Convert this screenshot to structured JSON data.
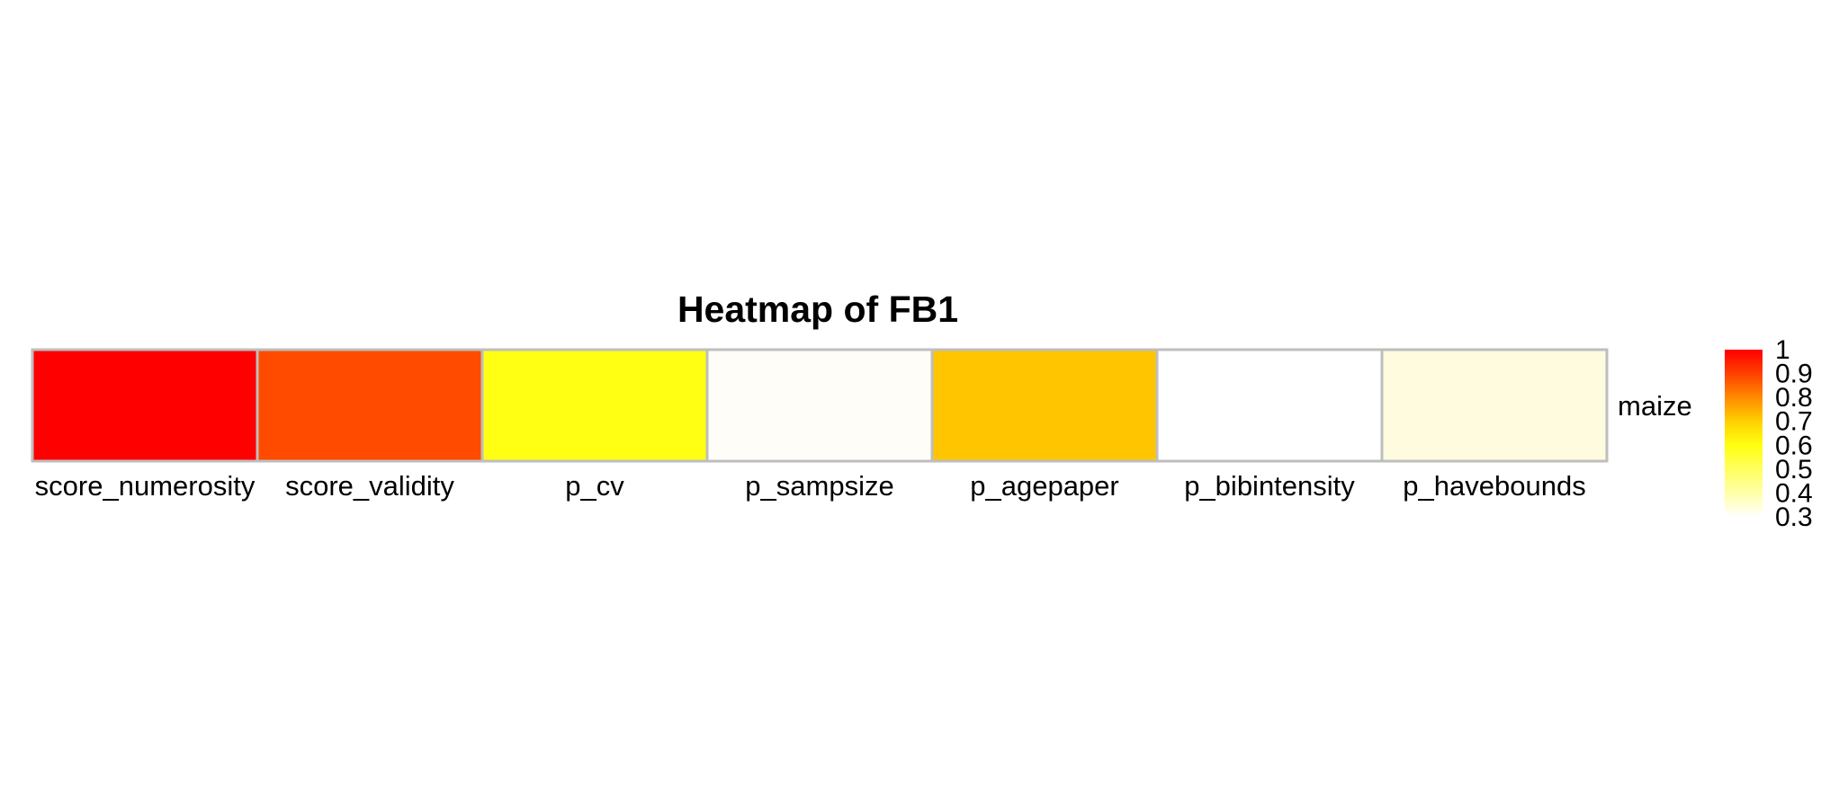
{
  "chart_data": {
    "type": "heatmap",
    "title": "Heatmap  of  FB1",
    "rows": [
      "maize"
    ],
    "columns": [
      "score_numerosity",
      "score_validity",
      "p_cv",
      "p_sampsize",
      "p_agepaper",
      "p_bibintensity",
      "p_havebounds"
    ],
    "values": [
      [
        1.0,
        0.9,
        0.6,
        0.3,
        0.75,
        0.28,
        0.35
      ]
    ],
    "cell_colors": [
      [
        "#ff0000",
        "#ff4b00",
        "#ffff14",
        "#fffdf8",
        "#ffc600",
        "#ffffff",
        "#fffbde"
      ]
    ],
    "cell_border_color": "#bebebe",
    "legend": {
      "position": "right",
      "ticks": [
        "1",
        "0.9",
        "0.8",
        "0.7",
        "0.6",
        "0.5",
        "0.4",
        "0.3"
      ],
      "colors": [
        "#ff0000",
        "#ff4000",
        "#ff8a00",
        "#ffd000",
        "#ffff10",
        "#ffff60",
        "#ffffa8",
        "#ffffff"
      ],
      "range": [
        0.3,
        1.0
      ]
    }
  }
}
